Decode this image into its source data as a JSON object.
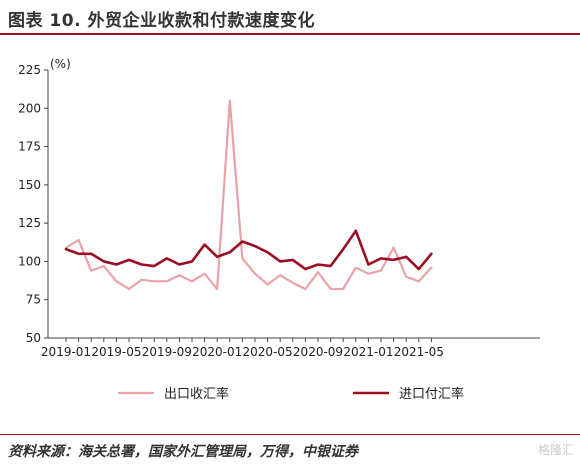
{
  "header": {
    "title": "图表 10. 外贸企业收款和付款速度变化"
  },
  "footer": {
    "source": "资料来源：海关总署，国家外汇管理局，万得，中银证券",
    "watermark": "格隆汇"
  },
  "chart_data": {
    "type": "line",
    "unit": "(%)",
    "ylim": [
      50,
      225
    ],
    "yticks": [
      50,
      75,
      100,
      125,
      150,
      175,
      200,
      225
    ],
    "xtick_labels": [
      "2019-01",
      "2019-05",
      "2019-09",
      "2020-01",
      "2020-05",
      "2020-09",
      "2021-01",
      "2021-05"
    ],
    "x": [
      "2019-01",
      "2019-02",
      "2019-03",
      "2019-04",
      "2019-05",
      "2019-06",
      "2019-07",
      "2019-08",
      "2019-09",
      "2019-10",
      "2019-11",
      "2019-12",
      "2020-01",
      "2020-02",
      "2020-03",
      "2020-04",
      "2020-05",
      "2020-06",
      "2020-07",
      "2020-08",
      "2020-09",
      "2020-10",
      "2020-11",
      "2020-12",
      "2021-01",
      "2021-02",
      "2021-03",
      "2021-04",
      "2021-05",
      "2021-06"
    ],
    "series": [
      {
        "name": "出口收汇率",
        "color": "#e8a3a6",
        "values": [
          109,
          114,
          94,
          97,
          87,
          82,
          88,
          87,
          87,
          91,
          87,
          92,
          82,
          205,
          102,
          92,
          85,
          91,
          86,
          82,
          93,
          82,
          82,
          96,
          92,
          94,
          109,
          90,
          87,
          96
        ]
      },
      {
        "name": "进口付汇率",
        "color": "#9b0d23",
        "values": [
          108,
          105,
          105,
          100,
          98,
          101,
          98,
          97,
          102,
          98,
          100,
          111,
          103,
          106,
          113,
          110,
          106,
          100,
          101,
          95,
          98,
          97,
          108,
          120,
          98,
          102,
          101,
          103,
          95,
          105
        ]
      }
    ],
    "grid": false,
    "legend_position": "bottom"
  }
}
